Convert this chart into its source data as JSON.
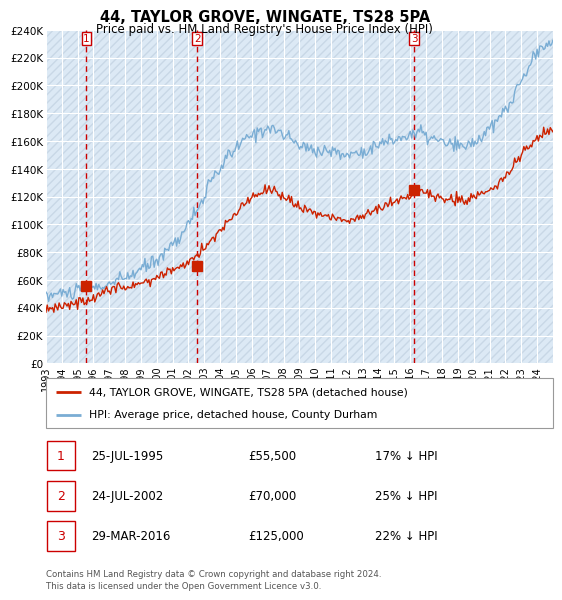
{
  "title": "44, TAYLOR GROVE, WINGATE, TS28 5PA",
  "subtitle": "Price paid vs. HM Land Registry's House Price Index (HPI)",
  "ylim": [
    0,
    240000
  ],
  "yticks": [
    0,
    20000,
    40000,
    60000,
    80000,
    100000,
    120000,
    140000,
    160000,
    180000,
    200000,
    220000,
    240000
  ],
  "background_color": "#ffffff",
  "plot_bg_color": "#dce9f5",
  "grid_color": "#ffffff",
  "hatch_color": "#c0d0e0",
  "sale_prices": [
    55500,
    70000,
    125000
  ],
  "sale_years_float": [
    1995.558,
    2002.558,
    2016.247
  ],
  "sale_labels": [
    "1",
    "2",
    "3"
  ],
  "sale_label_color": "#cc0000",
  "hpi_line_color": "#7aadd4",
  "price_line_color": "#cc2200",
  "vline_color": "#cc0000",
  "legend_label_price": "44, TAYLOR GROVE, WINGATE, TS28 5PA (detached house)",
  "legend_label_hpi": "HPI: Average price, detached house, County Durham",
  "table_rows": [
    {
      "num": "1",
      "date": "25-JUL-1995",
      "price": "£55,500",
      "pct": "17% ↓ HPI"
    },
    {
      "num": "2",
      "date": "24-JUL-2002",
      "price": "£70,000",
      "pct": "25% ↓ HPI"
    },
    {
      "num": "3",
      "date": "29-MAR-2016",
      "price": "£125,000",
      "pct": "22% ↓ HPI"
    }
  ],
  "footnote": "Contains HM Land Registry data © Crown copyright and database right 2024.\nThis data is licensed under the Open Government Licence v3.0.",
  "xlim": [
    1993.0,
    2025.0
  ],
  "xtick_years": [
    1993,
    1994,
    1995,
    1996,
    1997,
    1998,
    1999,
    2000,
    2001,
    2002,
    2003,
    2004,
    2005,
    2006,
    2007,
    2008,
    2009,
    2010,
    2011,
    2012,
    2013,
    2014,
    2015,
    2016,
    2017,
    2018,
    2019,
    2020,
    2021,
    2022,
    2023,
    2024
  ]
}
